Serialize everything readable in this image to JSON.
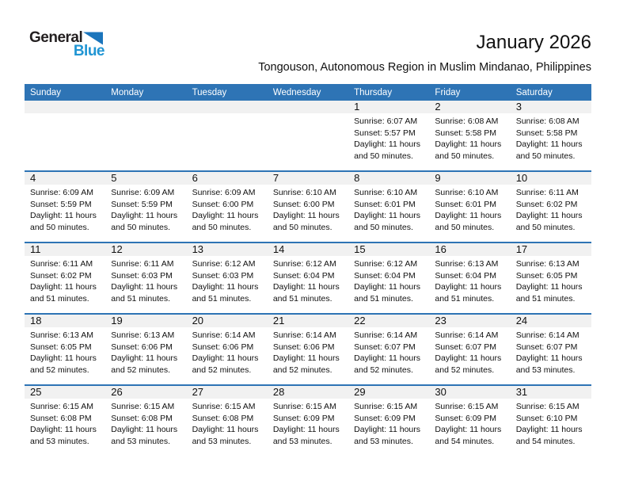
{
  "logo": {
    "text_top": "General",
    "text_bottom": "Blue"
  },
  "header": {
    "title": "January 2026",
    "subtitle": "Tongouson, Autonomous Region in Muslim Mindanao, Philippines"
  },
  "colors": {
    "header_blue": "#2e74b5",
    "row_divider_blue": "#2e74b5",
    "day_band_gray": "#f1f1f1",
    "logo_text_blue": "#2095d3",
    "logo_triangle_blue": "#1b75bc",
    "logo_text_black": "#231f20",
    "weekday_text": "#ffffff"
  },
  "calendar": {
    "weekday_headers": [
      "Sunday",
      "Monday",
      "Tuesday",
      "Wednesday",
      "Thursday",
      "Friday",
      "Saturday"
    ],
    "weeks": [
      [
        null,
        null,
        null,
        null,
        {
          "day": "1",
          "lines": [
            "Sunrise: 6:07 AM",
            "Sunset: 5:57 PM",
            "Daylight: 11 hours",
            "and 50 minutes."
          ]
        },
        {
          "day": "2",
          "lines": [
            "Sunrise: 6:08 AM",
            "Sunset: 5:58 PM",
            "Daylight: 11 hours",
            "and 50 minutes."
          ]
        },
        {
          "day": "3",
          "lines": [
            "Sunrise: 6:08 AM",
            "Sunset: 5:58 PM",
            "Daylight: 11 hours",
            "and 50 minutes."
          ]
        }
      ],
      [
        {
          "day": "4",
          "lines": [
            "Sunrise: 6:09 AM",
            "Sunset: 5:59 PM",
            "Daylight: 11 hours",
            "and 50 minutes."
          ]
        },
        {
          "day": "5",
          "lines": [
            "Sunrise: 6:09 AM",
            "Sunset: 5:59 PM",
            "Daylight: 11 hours",
            "and 50 minutes."
          ]
        },
        {
          "day": "6",
          "lines": [
            "Sunrise: 6:09 AM",
            "Sunset: 6:00 PM",
            "Daylight: 11 hours",
            "and 50 minutes."
          ]
        },
        {
          "day": "7",
          "lines": [
            "Sunrise: 6:10 AM",
            "Sunset: 6:00 PM",
            "Daylight: 11 hours",
            "and 50 minutes."
          ]
        },
        {
          "day": "8",
          "lines": [
            "Sunrise: 6:10 AM",
            "Sunset: 6:01 PM",
            "Daylight: 11 hours",
            "and 50 minutes."
          ]
        },
        {
          "day": "9",
          "lines": [
            "Sunrise: 6:10 AM",
            "Sunset: 6:01 PM",
            "Daylight: 11 hours",
            "and 50 minutes."
          ]
        },
        {
          "day": "10",
          "lines": [
            "Sunrise: 6:11 AM",
            "Sunset: 6:02 PM",
            "Daylight: 11 hours",
            "and 50 minutes."
          ]
        }
      ],
      [
        {
          "day": "11",
          "lines": [
            "Sunrise: 6:11 AM",
            "Sunset: 6:02 PM",
            "Daylight: 11 hours",
            "and 51 minutes."
          ]
        },
        {
          "day": "12",
          "lines": [
            "Sunrise: 6:11 AM",
            "Sunset: 6:03 PM",
            "Daylight: 11 hours",
            "and 51 minutes."
          ]
        },
        {
          "day": "13",
          "lines": [
            "Sunrise: 6:12 AM",
            "Sunset: 6:03 PM",
            "Daylight: 11 hours",
            "and 51 minutes."
          ]
        },
        {
          "day": "14",
          "lines": [
            "Sunrise: 6:12 AM",
            "Sunset: 6:04 PM",
            "Daylight: 11 hours",
            "and 51 minutes."
          ]
        },
        {
          "day": "15",
          "lines": [
            "Sunrise: 6:12 AM",
            "Sunset: 6:04 PM",
            "Daylight: 11 hours",
            "and 51 minutes."
          ]
        },
        {
          "day": "16",
          "lines": [
            "Sunrise: 6:13 AM",
            "Sunset: 6:04 PM",
            "Daylight: 11 hours",
            "and 51 minutes."
          ]
        },
        {
          "day": "17",
          "lines": [
            "Sunrise: 6:13 AM",
            "Sunset: 6:05 PM",
            "Daylight: 11 hours",
            "and 51 minutes."
          ]
        }
      ],
      [
        {
          "day": "18",
          "lines": [
            "Sunrise: 6:13 AM",
            "Sunset: 6:05 PM",
            "Daylight: 11 hours",
            "and 52 minutes."
          ]
        },
        {
          "day": "19",
          "lines": [
            "Sunrise: 6:13 AM",
            "Sunset: 6:06 PM",
            "Daylight: 11 hours",
            "and 52 minutes."
          ]
        },
        {
          "day": "20",
          "lines": [
            "Sunrise: 6:14 AM",
            "Sunset: 6:06 PM",
            "Daylight: 11 hours",
            "and 52 minutes."
          ]
        },
        {
          "day": "21",
          "lines": [
            "Sunrise: 6:14 AM",
            "Sunset: 6:06 PM",
            "Daylight: 11 hours",
            "and 52 minutes."
          ]
        },
        {
          "day": "22",
          "lines": [
            "Sunrise: 6:14 AM",
            "Sunset: 6:07 PM",
            "Daylight: 11 hours",
            "and 52 minutes."
          ]
        },
        {
          "day": "23",
          "lines": [
            "Sunrise: 6:14 AM",
            "Sunset: 6:07 PM",
            "Daylight: 11 hours",
            "and 52 minutes."
          ]
        },
        {
          "day": "24",
          "lines": [
            "Sunrise: 6:14 AM",
            "Sunset: 6:07 PM",
            "Daylight: 11 hours",
            "and 53 minutes."
          ]
        }
      ],
      [
        {
          "day": "25",
          "lines": [
            "Sunrise: 6:15 AM",
            "Sunset: 6:08 PM",
            "Daylight: 11 hours",
            "and 53 minutes."
          ]
        },
        {
          "day": "26",
          "lines": [
            "Sunrise: 6:15 AM",
            "Sunset: 6:08 PM",
            "Daylight: 11 hours",
            "and 53 minutes."
          ]
        },
        {
          "day": "27",
          "lines": [
            "Sunrise: 6:15 AM",
            "Sunset: 6:08 PM",
            "Daylight: 11 hours",
            "and 53 minutes."
          ]
        },
        {
          "day": "28",
          "lines": [
            "Sunrise: 6:15 AM",
            "Sunset: 6:09 PM",
            "Daylight: 11 hours",
            "and 53 minutes."
          ]
        },
        {
          "day": "29",
          "lines": [
            "Sunrise: 6:15 AM",
            "Sunset: 6:09 PM",
            "Daylight: 11 hours",
            "and 53 minutes."
          ]
        },
        {
          "day": "30",
          "lines": [
            "Sunrise: 6:15 AM",
            "Sunset: 6:09 PM",
            "Daylight: 11 hours",
            "and 54 minutes."
          ]
        },
        {
          "day": "31",
          "lines": [
            "Sunrise: 6:15 AM",
            "Sunset: 6:10 PM",
            "Daylight: 11 hours",
            "and 54 minutes."
          ]
        }
      ]
    ]
  }
}
